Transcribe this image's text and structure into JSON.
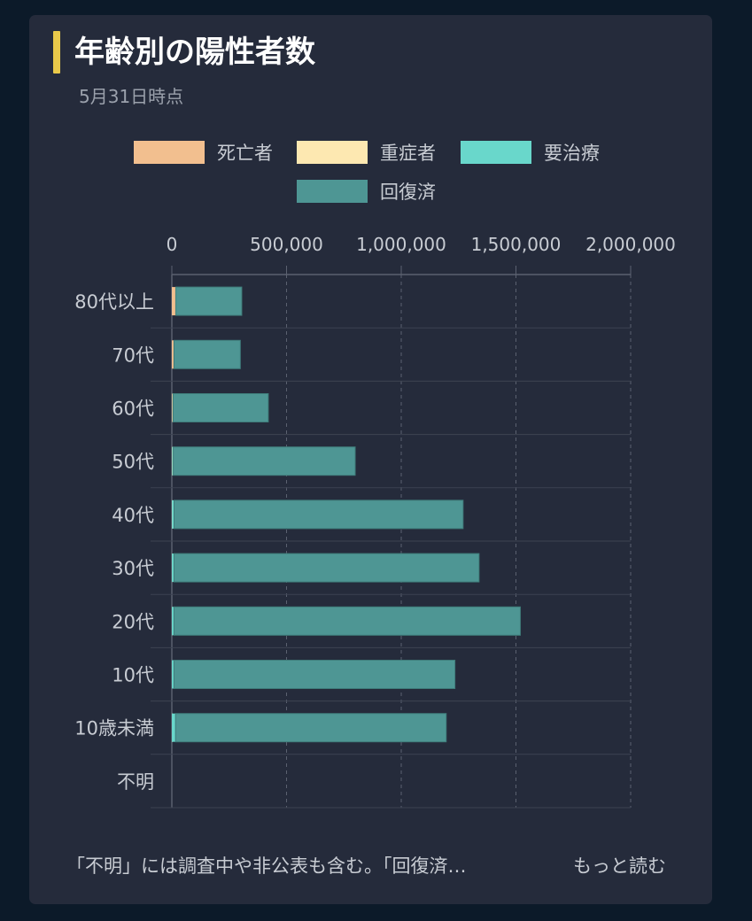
{
  "card": {
    "title": "年齢別の陽性者数",
    "subtitle": "5月31日時点",
    "footer_text": "「不明」には調査中や非公表も含む。「回復済…",
    "more_label": "もっと読む"
  },
  "chart_data": {
    "type": "bar",
    "orientation": "horizontal",
    "stacked": true,
    "categories": [
      "80代以上",
      "70代",
      "60代",
      "50代",
      "40代",
      "30代",
      "20代",
      "10代",
      "10歳未満",
      "不明"
    ],
    "series": [
      {
        "name": "死亡者",
        "color": "#f2bf8f",
        "values": [
          15000,
          7000,
          2500,
          900,
          400,
          150,
          60,
          10,
          5,
          0
        ]
      },
      {
        "name": "重症者",
        "color": "#fde8b1",
        "values": [
          800,
          600,
          500,
          400,
          250,
          120,
          60,
          20,
          20,
          0
        ]
      },
      {
        "name": "要治療",
        "color": "#69d7cb",
        "values": [
          2000,
          2000,
          2500,
          5000,
          9000,
          9000,
          9000,
          9000,
          16000,
          0
        ]
      },
      {
        "name": "回復済",
        "color": "#4e9694",
        "values": [
          287000,
          289000,
          415000,
          793000,
          1260000,
          1330000,
          1510000,
          1225000,
          1180000,
          0
        ]
      }
    ],
    "xlim": [
      0,
      2000000
    ],
    "x_ticks": [
      "0",
      "500,000",
      "1,000,000",
      "1,500,000",
      "2,000,000"
    ],
    "grid": true,
    "legend_position": "top"
  }
}
